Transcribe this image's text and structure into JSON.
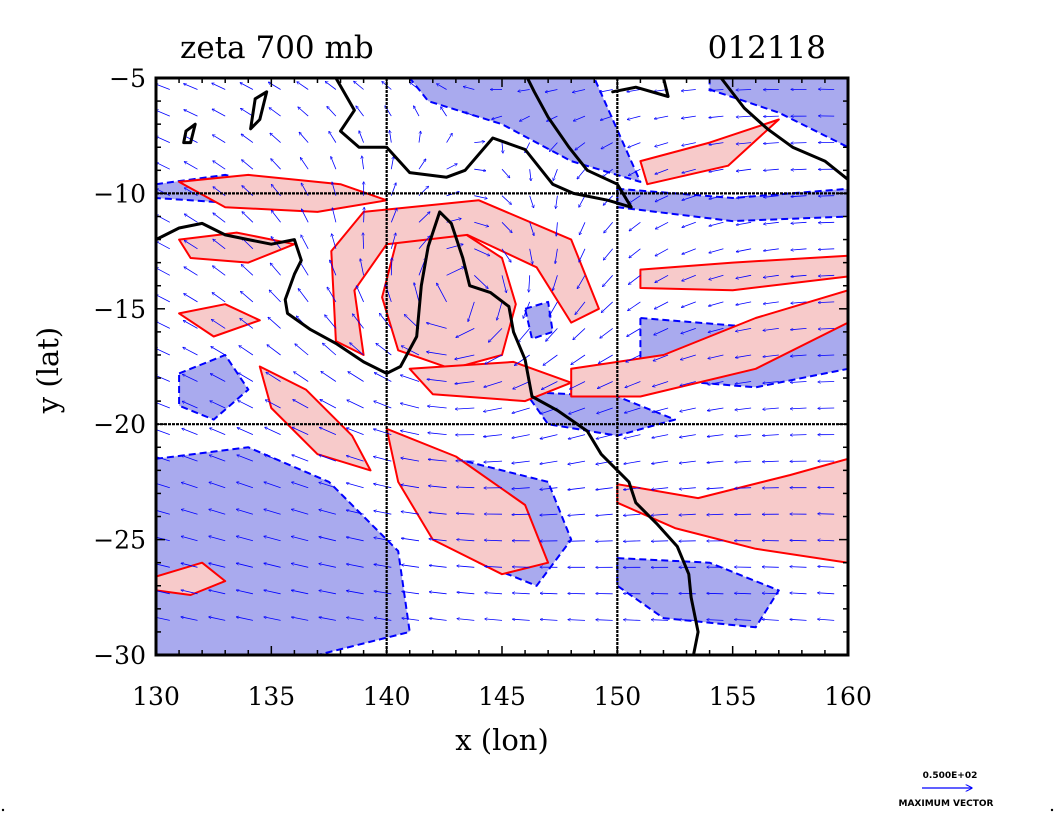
{
  "title": {
    "left": "zeta 700 mb",
    "right": "012118"
  },
  "axes": {
    "xlabel": "x (lon)",
    "ylabel": "y (lat)",
    "xlim": [
      130,
      160
    ],
    "ylim": [
      -30,
      -5
    ],
    "xticks": [
      "130",
      "135",
      "140",
      "145",
      "150",
      "155",
      "160"
    ],
    "yticks": [
      "−5",
      "−10",
      "−15",
      "−20",
      "−25",
      "−30"
    ],
    "grid_lines_lon": [
      140,
      150
    ],
    "grid_lines_lat": [
      -10,
      -20
    ]
  },
  "reference_vector": {
    "value": "0.500E+02",
    "label": "MAXIMUM VECTOR"
  },
  "colors": {
    "positive_fill": "#f7caca",
    "positive_line": "#ff0000",
    "negative_fill": "#a9aaee",
    "negative_line": "#0000ff",
    "vectors": "#0000ff",
    "coast": "#000000"
  },
  "coastline": [
    {
      "name": "australia-north-west",
      "lonlat": [
        [
          130,
          -12.0
        ],
        [
          131,
          -11.5
        ],
        [
          132,
          -11.3
        ],
        [
          133,
          -11.8
        ],
        [
          134,
          -12.0
        ],
        [
          135,
          -12.2
        ],
        [
          136,
          -12.0
        ],
        [
          136.3,
          -12.9
        ],
        [
          136.0,
          -13.5
        ],
        [
          135.6,
          -14.6
        ],
        [
          135.7,
          -15.2
        ],
        [
          136.7,
          -15.9
        ],
        [
          137.8,
          -16.5
        ],
        [
          139.0,
          -17.3
        ],
        [
          140.0,
          -17.8
        ],
        [
          140.6,
          -17.5
        ],
        [
          141.3,
          -16.2
        ],
        [
          141.5,
          -14.0
        ],
        [
          141.8,
          -12.3
        ],
        [
          142.3,
          -10.8
        ],
        [
          142.8,
          -11.3
        ],
        [
          143.3,
          -12.8
        ],
        [
          143.6,
          -14.0
        ],
        [
          144.5,
          -14.3
        ],
        [
          145.3,
          -14.9
        ],
        [
          145.5,
          -16.0
        ],
        [
          146.0,
          -17.2
        ],
        [
          146.3,
          -18.8
        ],
        [
          147.4,
          -19.4
        ],
        [
          148.7,
          -20.3
        ],
        [
          149.3,
          -21.3
        ],
        [
          150.5,
          -22.5
        ],
        [
          150.8,
          -23.4
        ],
        [
          151.7,
          -24.3
        ],
        [
          152.6,
          -25.3
        ],
        [
          153.1,
          -26.5
        ],
        [
          153.2,
          -27.5
        ],
        [
          153.5,
          -29.0
        ],
        [
          153.3,
          -30.0
        ]
      ]
    },
    {
      "name": "new-guinea-south",
      "lonlat": [
        [
          137.8,
          -5.0
        ],
        [
          138.6,
          -6.4
        ],
        [
          138.0,
          -7.3
        ],
        [
          138.8,
          -8.0
        ],
        [
          140.0,
          -8.0
        ],
        [
          141.0,
          -9.1
        ],
        [
          142.6,
          -9.3
        ],
        [
          143.4,
          -9.0
        ],
        [
          144.6,
          -7.6
        ],
        [
          146.0,
          -8.1
        ],
        [
          147.2,
          -9.6
        ],
        [
          148.1,
          -10.0
        ],
        [
          149.6,
          -10.3
        ],
        [
          150.6,
          -10.6
        ],
        [
          150.0,
          -9.6
        ],
        [
          148.7,
          -9.0
        ],
        [
          147.9,
          -8.0
        ],
        [
          147.0,
          -6.7
        ],
        [
          146.4,
          -5.6
        ],
        [
          146.1,
          -5.0
        ]
      ]
    },
    {
      "name": "new-britain",
      "lonlat": [
        [
          149.8,
          -5.6
        ],
        [
          150.8,
          -5.4
        ],
        [
          152.2,
          -5.8
        ],
        [
          152.0,
          -5.0
        ]
      ]
    },
    {
      "name": "solomons",
      "lonlat": [
        [
          154.5,
          -5.0
        ],
        [
          155.5,
          -6.3
        ],
        [
          156.5,
          -7.2
        ],
        [
          157.6,
          -8.0
        ],
        [
          159.0,
          -8.6
        ],
        [
          160.0,
          -9.4
        ]
      ]
    },
    {
      "name": "islet-a",
      "lonlat": [
        [
          134.3,
          -5.9
        ],
        [
          134.8,
          -5.6
        ],
        [
          134.5,
          -6.8
        ],
        [
          134.1,
          -7.2
        ],
        [
          134.3,
          -5.9
        ]
      ]
    },
    {
      "name": "islet-b",
      "lonlat": [
        [
          131.3,
          -7.3
        ],
        [
          131.7,
          -7.0
        ],
        [
          131.5,
          -7.8
        ],
        [
          131.2,
          -7.8
        ],
        [
          131.3,
          -7.3
        ]
      ]
    }
  ],
  "zeta_positive_regions": [
    {
      "name": "cyclone-core",
      "lonlat": [
        [
          140.5,
          -11.8
        ],
        [
          143.0,
          -11.5
        ],
        [
          145.0,
          -12.8
        ],
        [
          145.6,
          -14.8
        ],
        [
          145.0,
          -17.0
        ],
        [
          142.8,
          -17.6
        ],
        [
          140.5,
          -16.8
        ],
        [
          139.8,
          -14.5
        ],
        [
          140.5,
          -11.8
        ]
      ]
    },
    {
      "name": "spiral-band-outer",
      "lonlat": [
        [
          139.0,
          -10.8
        ],
        [
          144.0,
          -10.3
        ],
        [
          148.0,
          -12.0
        ],
        [
          149.2,
          -15.0
        ],
        [
          148.0,
          -15.6
        ],
        [
          146.5,
          -13.2
        ],
        [
          143.5,
          -11.8
        ],
        [
          140.0,
          -12.2
        ],
        [
          138.6,
          -14.2
        ],
        [
          139.0,
          -17.0
        ],
        [
          137.8,
          -16.4
        ],
        [
          137.6,
          -12.5
        ],
        [
          139.0,
          -10.8
        ]
      ]
    },
    {
      "name": "south-band",
      "lonlat": [
        [
          141.0,
          -17.6
        ],
        [
          145.5,
          -17.3
        ],
        [
          148.0,
          -18.2
        ],
        [
          146.0,
          -19.0
        ],
        [
          142.0,
          -18.7
        ],
        [
          141.0,
          -17.6
        ]
      ]
    },
    {
      "name": "ne-band",
      "lonlat": [
        [
          151.0,
          -8.6
        ],
        [
          154.0,
          -7.8
        ],
        [
          157.0,
          -6.8
        ],
        [
          154.8,
          -8.8
        ],
        [
          151.3,
          -9.6
        ],
        [
          151.0,
          -8.6
        ]
      ]
    },
    {
      "name": "east-trough",
      "lonlat": [
        [
          148.0,
          -17.6
        ],
        [
          152.0,
          -17.0
        ],
        [
          156.0,
          -15.4
        ],
        [
          160.0,
          -14.2
        ],
        [
          160.0,
          -15.6
        ],
        [
          156.0,
          -17.6
        ],
        [
          151.0,
          -18.8
        ],
        [
          148.0,
          -18.8
        ],
        [
          148.0,
          -17.6
        ]
      ]
    },
    {
      "name": "east-upper",
      "lonlat": [
        [
          151.0,
          -13.3
        ],
        [
          155.0,
          -13.0
        ],
        [
          160.0,
          -12.7
        ],
        [
          160.0,
          -13.6
        ],
        [
          155.0,
          -14.2
        ],
        [
          151.0,
          -14.1
        ],
        [
          151.0,
          -13.3
        ]
      ]
    },
    {
      "name": "se-band",
      "lonlat": [
        [
          150.0,
          -22.6
        ],
        [
          153.5,
          -23.2
        ],
        [
          157.5,
          -22.2
        ],
        [
          160.0,
          -21.5
        ],
        [
          160.0,
          -26.0
        ],
        [
          156.0,
          -25.4
        ],
        [
          152.5,
          -24.5
        ],
        [
          150.0,
          -23.4
        ],
        [
          150.0,
          -22.6
        ]
      ]
    },
    {
      "name": "west-band-a",
      "lonlat": [
        [
          131.0,
          -12.0
        ],
        [
          133.5,
          -11.7
        ],
        [
          136.0,
          -12.2
        ],
        [
          134.0,
          -13.0
        ],
        [
          131.5,
          -12.8
        ],
        [
          131.0,
          -12.0
        ]
      ]
    },
    {
      "name": "west-band-b",
      "lonlat": [
        [
          131.0,
          -15.2
        ],
        [
          133.0,
          -14.8
        ],
        [
          134.5,
          -15.5
        ],
        [
          132.5,
          -16.2
        ],
        [
          131.0,
          -15.2
        ]
      ]
    },
    {
      "name": "sw-band",
      "lonlat": [
        [
          134.5,
          -17.5
        ],
        [
          136.5,
          -18.5
        ],
        [
          138.5,
          -20.5
        ],
        [
          139.3,
          -22.0
        ],
        [
          137.0,
          -21.3
        ],
        [
          135.0,
          -19.3
        ],
        [
          134.5,
          -17.5
        ]
      ]
    },
    {
      "name": "south-center-band",
      "lonlat": [
        [
          140.0,
          -20.2
        ],
        [
          143.0,
          -21.4
        ],
        [
          146.0,
          -23.5
        ],
        [
          147.0,
          -26.0
        ],
        [
          145.0,
          -26.5
        ],
        [
          142.0,
          -25.0
        ],
        [
          140.5,
          -22.5
        ],
        [
          140.0,
          -20.2
        ]
      ]
    },
    {
      "name": "north-west-band",
      "lonlat": [
        [
          131.0,
          -9.5
        ],
        [
          134.0,
          -9.2
        ],
        [
          138.0,
          -9.6
        ],
        [
          140.0,
          -10.3
        ],
        [
          137.0,
          -10.8
        ],
        [
          133.0,
          -10.6
        ],
        [
          131.0,
          -9.5
        ]
      ]
    },
    {
      "name": "sw-small",
      "lonlat": [
        [
          130.0,
          -26.6
        ],
        [
          132.0,
          -26.0
        ],
        [
          133.0,
          -26.8
        ],
        [
          131.5,
          -27.4
        ],
        [
          130.0,
          -27.2
        ],
        [
          130.0,
          -26.6
        ]
      ]
    }
  ],
  "zeta_negative_regions": [
    {
      "name": "png-north",
      "lonlat": [
        [
          141.0,
          -5.0
        ],
        [
          149.0,
          -5.0
        ],
        [
          151.0,
          -9.5
        ],
        [
          148.0,
          -8.6
        ],
        [
          145.0,
          -7.0
        ],
        [
          141.8,
          -6.0
        ],
        [
          141.0,
          -5.0
        ]
      ]
    },
    {
      "name": "east-top",
      "lonlat": [
        [
          154.0,
          -5.0
        ],
        [
          160.0,
          -5.0
        ],
        [
          160.0,
          -8.0
        ],
        [
          157.0,
          -6.5
        ],
        [
          154.0,
          -5.5
        ],
        [
          154.0,
          -5.0
        ]
      ]
    },
    {
      "name": "east-10",
      "lonlat": [
        [
          150.0,
          -9.8
        ],
        [
          155.0,
          -10.2
        ],
        [
          160.0,
          -9.8
        ],
        [
          160.0,
          -11.0
        ],
        [
          155.0,
          -11.2
        ],
        [
          150.0,
          -10.6
        ],
        [
          150.0,
          -9.8
        ]
      ]
    },
    {
      "name": "east-mid",
      "lonlat": [
        [
          151.0,
          -15.4
        ],
        [
          156.0,
          -15.8
        ],
        [
          160.0,
          -15.6
        ],
        [
          160.0,
          -17.6
        ],
        [
          156.0,
          -18.4
        ],
        [
          151.0,
          -18.0
        ],
        [
          151.0,
          -15.4
        ]
      ]
    },
    {
      "name": "coral-center",
      "lonlat": [
        [
          146.0,
          -18.6
        ],
        [
          150.0,
          -18.8
        ],
        [
          152.5,
          -19.8
        ],
        [
          150.0,
          -20.5
        ],
        [
          147.0,
          -20.0
        ],
        [
          146.0,
          -18.6
        ]
      ]
    },
    {
      "name": "south-west",
      "lonlat": [
        [
          130.0,
          -21.5
        ],
        [
          134.0,
          -21.0
        ],
        [
          137.5,
          -22.5
        ],
        [
          140.5,
          -25.5
        ],
        [
          141.0,
          -29.0
        ],
        [
          137.0,
          -30.0
        ],
        [
          133.0,
          -30.0
        ],
        [
          130.0,
          -30.0
        ],
        [
          130.0,
          -21.5
        ]
      ]
    },
    {
      "name": "south-mid",
      "lonlat": [
        [
          143.0,
          -21.5
        ],
        [
          147.0,
          -22.5
        ],
        [
          148.0,
          -25.0
        ],
        [
          146.5,
          -27.0
        ],
        [
          144.0,
          -26.0
        ],
        [
          143.0,
          -21.5
        ]
      ]
    },
    {
      "name": "south-east",
      "lonlat": [
        [
          150.0,
          -25.8
        ],
        [
          154.0,
          -26.0
        ],
        [
          157.0,
          -27.2
        ],
        [
          156.0,
          -28.8
        ],
        [
          152.0,
          -28.4
        ],
        [
          150.0,
          -27.0
        ],
        [
          150.0,
          -25.8
        ]
      ]
    },
    {
      "name": "west-mid",
      "lonlat": [
        [
          131.0,
          -17.8
        ],
        [
          133.0,
          -17.0
        ],
        [
          134.0,
          -18.5
        ],
        [
          132.5,
          -19.8
        ],
        [
          131.0,
          -19.2
        ],
        [
          131.0,
          -17.8
        ]
      ]
    },
    {
      "name": "cyclone-eye-ring",
      "lonlat": [
        [
          146.0,
          -15.0
        ],
        [
          147.0,
          -14.7
        ],
        [
          147.2,
          -16.0
        ],
        [
          146.3,
          -16.3
        ],
        [
          146.0,
          -15.0
        ]
      ]
    },
    {
      "name": "north-west",
      "lonlat": [
        [
          130.0,
          -9.6
        ],
        [
          133.0,
          -9.2
        ],
        [
          135.5,
          -9.8
        ],
        [
          133.0,
          -10.4
        ],
        [
          130.0,
          -10.2
        ],
        [
          130.0,
          -9.6
        ]
      ]
    }
  ]
}
